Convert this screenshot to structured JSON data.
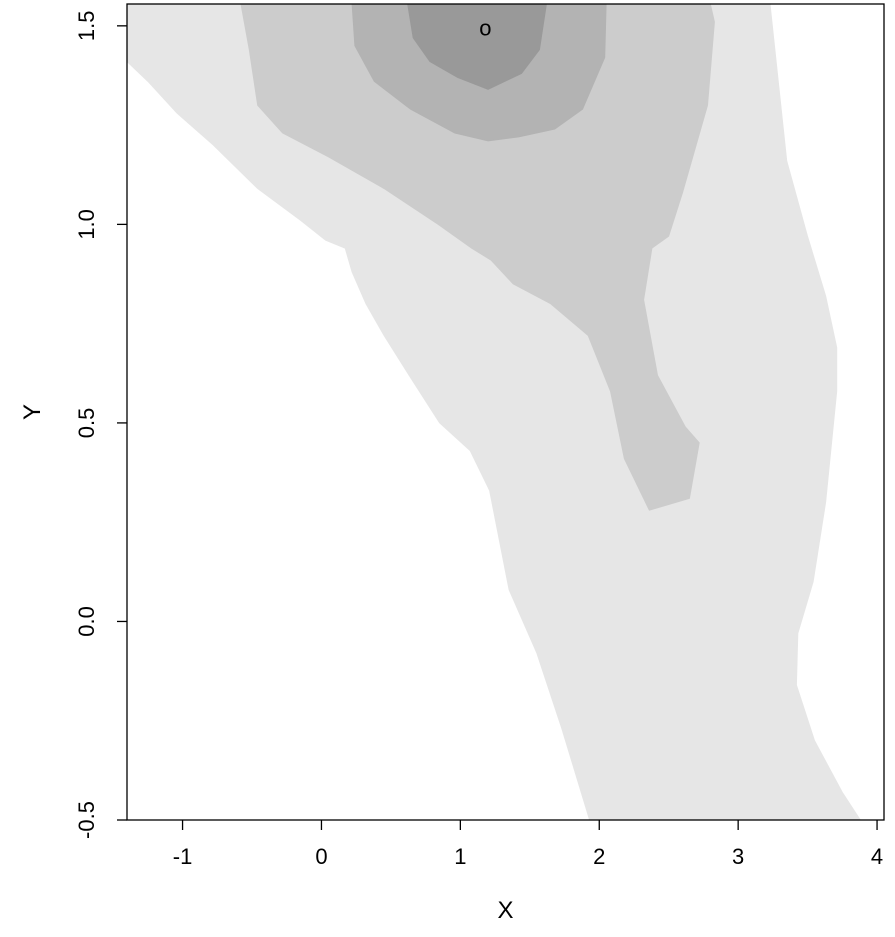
{
  "chart_data": {
    "type": "contour",
    "title": "",
    "xlabel": "X",
    "ylabel": "Y",
    "xlim": [
      -1.4,
      4.05
    ],
    "ylim": [
      -0.5,
      1.555
    ],
    "x_ticks": [
      -1,
      0,
      1,
      2,
      3,
      4
    ],
    "x_tick_labels": [
      "-1",
      "0",
      "1",
      "2",
      "3",
      "4"
    ],
    "y_ticks": [
      -0.5,
      0.0,
      0.5,
      1.0,
      1.5
    ],
    "y_tick_labels": [
      "-0.5",
      "0.0",
      "0.5",
      "1.0",
      "1.5"
    ],
    "grid": false,
    "legend": "none",
    "background_color": "#ffffff",
    "level_colors": [
      "#e6e6e6",
      "#cccccc",
      "#b3b3b3",
      "#999999"
    ],
    "levels": [
      {
        "level": 1,
        "fill": "#e6e6e6",
        "polygon": [
          [
            -1.4,
            1.555
          ],
          [
            3.23,
            1.555
          ],
          [
            3.35,
            1.16
          ],
          [
            3.5,
            0.97
          ],
          [
            3.63,
            0.82
          ],
          [
            3.71,
            0.69
          ],
          [
            3.71,
            0.58
          ],
          [
            3.63,
            0.3
          ],
          [
            3.54,
            0.1
          ],
          [
            3.43,
            -0.03
          ],
          [
            3.42,
            -0.16
          ],
          [
            3.55,
            -0.3
          ],
          [
            3.75,
            -0.43
          ],
          [
            3.88,
            -0.5
          ],
          [
            1.93,
            -0.5
          ],
          [
            1.73,
            -0.27
          ],
          [
            1.55,
            -0.08
          ],
          [
            1.35,
            0.08
          ],
          [
            1.21,
            0.33
          ],
          [
            1.07,
            0.43
          ],
          [
            0.85,
            0.5
          ],
          [
            0.63,
            0.62
          ],
          [
            0.45,
            0.72
          ],
          [
            0.32,
            0.8
          ],
          [
            0.22,
            0.88
          ],
          [
            0.17,
            0.94
          ],
          [
            0.03,
            0.96
          ],
          [
            -0.15,
            1.01
          ],
          [
            -0.46,
            1.09
          ],
          [
            -0.78,
            1.2
          ],
          [
            -1.04,
            1.28
          ],
          [
            -1.25,
            1.36
          ],
          [
            -1.4,
            1.41
          ]
        ]
      },
      {
        "level": 2,
        "fill": "#cccccc",
        "polygon": [
          [
            -0.58,
            1.555
          ],
          [
            2.8,
            1.555
          ],
          [
            2.83,
            1.51
          ],
          [
            2.78,
            1.3
          ],
          [
            2.6,
            1.08
          ],
          [
            2.5,
            0.97
          ],
          [
            2.38,
            0.94
          ],
          [
            2.32,
            0.81
          ],
          [
            2.42,
            0.62
          ],
          [
            2.62,
            0.49
          ],
          [
            2.72,
            0.45
          ],
          [
            2.65,
            0.31
          ],
          [
            2.36,
            0.28
          ],
          [
            2.18,
            0.41
          ],
          [
            2.08,
            0.58
          ],
          [
            1.92,
            0.72
          ],
          [
            1.65,
            0.8
          ],
          [
            1.38,
            0.85
          ],
          [
            1.22,
            0.91
          ],
          [
            1.08,
            0.94
          ],
          [
            0.84,
            1.0
          ],
          [
            0.45,
            1.09
          ],
          [
            0.05,
            1.17
          ],
          [
            -0.28,
            1.23
          ],
          [
            -0.46,
            1.3
          ],
          [
            -0.52,
            1.44
          ]
        ]
      },
      {
        "level": 3,
        "fill": "#b3b3b3",
        "polygon": [
          [
            0.22,
            1.555
          ],
          [
            2.05,
            1.555
          ],
          [
            2.04,
            1.42
          ],
          [
            1.88,
            1.29
          ],
          [
            1.68,
            1.24
          ],
          [
            1.42,
            1.22
          ],
          [
            1.2,
            1.21
          ],
          [
            0.96,
            1.23
          ],
          [
            0.64,
            1.29
          ],
          [
            0.38,
            1.36
          ],
          [
            0.24,
            1.45
          ]
        ]
      },
      {
        "level": 4,
        "fill": "#999999",
        "polygon": [
          [
            0.62,
            1.555
          ],
          [
            1.62,
            1.555
          ],
          [
            1.57,
            1.44
          ],
          [
            1.44,
            1.38
          ],
          [
            1.2,
            1.34
          ],
          [
            0.98,
            1.37
          ],
          [
            0.78,
            1.41
          ],
          [
            0.66,
            1.47
          ]
        ]
      }
    ],
    "marker": {
      "text": "o",
      "x": 1.18,
      "y": 1.49
    }
  }
}
